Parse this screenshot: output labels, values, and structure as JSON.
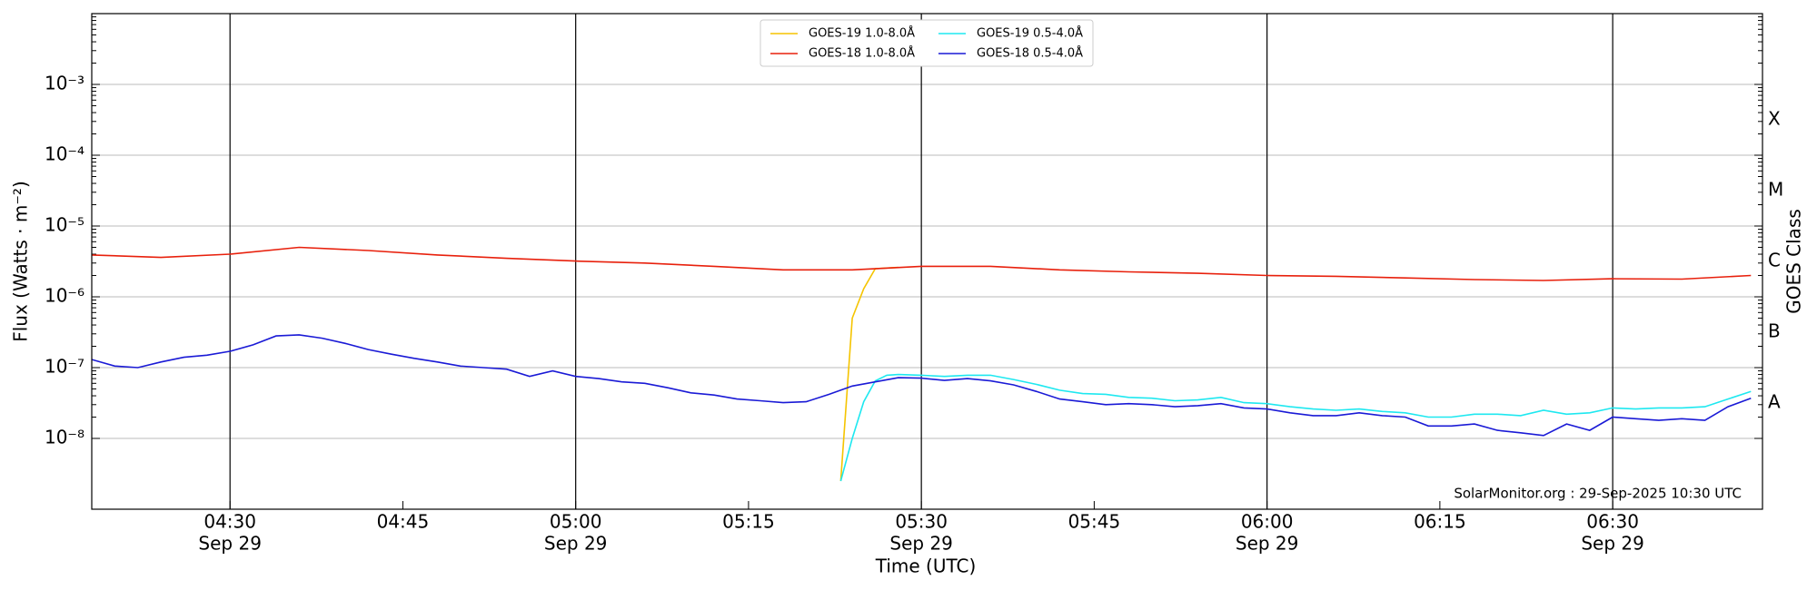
{
  "chart_data": {
    "type": "line",
    "x_label": "Time (UTC)",
    "y_label": "Flux (Watts · m⁻²)",
    "y2_label": "GOES Class",
    "annotation": "SolarMonitor.org : 29-Sep-2025 10:30 UTC",
    "log_scale": true,
    "grid": true,
    "legend": "top-center",
    "xlim": [
      "04:18",
      "06:43"
    ],
    "xticks": [
      {
        "value": "04:30",
        "label": "04:30",
        "sublabel": "Sep 29"
      },
      {
        "value": "04:45",
        "label": "04:45"
      },
      {
        "value": "05:00",
        "label": "05:00",
        "sublabel": "Sep 29"
      },
      {
        "value": "05:15",
        "label": "05:15"
      },
      {
        "value": "05:30",
        "label": "05:30",
        "sublabel": "Sep 29"
      },
      {
        "value": "05:45",
        "label": "05:45"
      },
      {
        "value": "06:00",
        "label": "06:00",
        "sublabel": "Sep 29"
      },
      {
        "value": "06:15",
        "label": "06:15"
      },
      {
        "value": "06:30",
        "label": "06:30",
        "sublabel": "Sep 29"
      }
    ],
    "ylim": [
      1e-09,
      0.01
    ],
    "yticks": [
      {
        "value": 1e-08,
        "label": "10⁻⁸"
      },
      {
        "value": 1e-07,
        "label": "10⁻⁷"
      },
      {
        "value": 1e-06,
        "label": "10⁻⁶"
      },
      {
        "value": 1e-05,
        "label": "10⁻⁵"
      },
      {
        "value": 0.0001,
        "label": "10⁻⁴"
      },
      {
        "value": 0.001,
        "label": "10⁻³"
      }
    ],
    "y2lim": [
      1e-09,
      0.01
    ],
    "y2ticks": [
      {
        "value": 3.16e-08,
        "label": "A"
      },
      {
        "value": 3.16e-07,
        "label": "B"
      },
      {
        "value": 3.16e-06,
        "label": "C"
      },
      {
        "value": 3.16e-05,
        "label": "M"
      },
      {
        "value": 0.000316,
        "label": "X"
      }
    ],
    "series": [
      {
        "name": "GOES-19 1.0-8.0Å",
        "color": "#f5c400",
        "x": [
          "05:23",
          "05:24",
          "05:25",
          "05:26",
          "05:28"
        ],
        "values": [
          2.5e-09,
          5e-07,
          1.3e-06,
          2.5e-06,
          2.6e-06
        ]
      },
      {
        "name": "GOES-18 1.0-8.0Å",
        "color": "#e8200c",
        "x": [
          "04:18",
          "04:24",
          "04:30",
          "04:36",
          "04:42",
          "04:48",
          "04:54",
          "05:00",
          "05:06",
          "05:12",
          "05:18",
          "05:24",
          "05:30",
          "05:36",
          "05:42",
          "05:48",
          "05:54",
          "06:00",
          "06:06",
          "06:12",
          "06:18",
          "06:24",
          "06:30",
          "06:36",
          "06:42"
        ],
        "values": [
          3.9e-06,
          3.6e-06,
          4e-06,
          5e-06,
          4.5e-06,
          3.9e-06,
          3.5e-06,
          3.2e-06,
          3e-06,
          2.7e-06,
          2.4e-06,
          2.4e-06,
          2.7e-06,
          2.7e-06,
          2.4e-06,
          2.25e-06,
          2.15e-06,
          2e-06,
          1.95e-06,
          1.85e-06,
          1.75e-06,
          1.7e-06,
          1.8e-06,
          1.78e-06,
          2e-06
        ]
      },
      {
        "name": "GOES-19 0.5-4.0Å",
        "color": "#1ee8f0",
        "x": [
          "05:23",
          "05:24",
          "05:25",
          "05:26",
          "05:27",
          "05:28",
          "05:30",
          "05:32",
          "05:34",
          "05:36",
          "05:38",
          "05:40",
          "05:42",
          "05:44",
          "05:46",
          "05:48",
          "05:50",
          "05:52",
          "05:54",
          "05:56",
          "05:58",
          "06:00",
          "06:02",
          "06:04",
          "06:06",
          "06:08",
          "06:10",
          "06:12",
          "06:14",
          "06:16",
          "06:18",
          "06:20",
          "06:22",
          "06:24",
          "06:26",
          "06:28",
          "06:30",
          "06:32",
          "06:34",
          "06:36",
          "06:38",
          "06:40",
          "06:42"
        ],
        "values": [
          2.5e-09,
          1e-08,
          3.3e-08,
          6.5e-08,
          7.8e-08,
          8e-08,
          7.8e-08,
          7.5e-08,
          7.8e-08,
          7.8e-08,
          6.8e-08,
          5.8e-08,
          4.8e-08,
          4.3e-08,
          4.2e-08,
          3.8e-08,
          3.7e-08,
          3.4e-08,
          3.5e-08,
          3.8e-08,
          3.2e-08,
          3.1e-08,
          2.8e-08,
          2.6e-08,
          2.5e-08,
          2.6e-08,
          2.4e-08,
          2.3e-08,
          2e-08,
          2e-08,
          2.2e-08,
          2.2e-08,
          2.1e-08,
          2.5e-08,
          2.2e-08,
          2.3e-08,
          2.7e-08,
          2.6e-08,
          2.7e-08,
          2.7e-08,
          2.8e-08,
          3.6e-08,
          4.6e-08
        ]
      },
      {
        "name": "GOES-18 0.5-4.0Å",
        "color": "#1a1ad6",
        "x": [
          "04:18",
          "04:20",
          "04:22",
          "04:24",
          "04:26",
          "04:28",
          "04:30",
          "04:32",
          "04:34",
          "04:36",
          "04:38",
          "04:40",
          "04:42",
          "04:44",
          "04:46",
          "04:48",
          "04:50",
          "04:52",
          "04:54",
          "04:56",
          "04:58",
          "05:00",
          "05:02",
          "05:04",
          "05:06",
          "05:08",
          "05:10",
          "05:12",
          "05:14",
          "05:16",
          "05:18",
          "05:20",
          "05:22",
          "05:24",
          "05:26",
          "05:28",
          "05:30",
          "05:32",
          "05:34",
          "05:36",
          "05:38",
          "05:40",
          "05:42",
          "05:44",
          "05:46",
          "05:48",
          "05:50",
          "05:52",
          "05:54",
          "05:56",
          "05:58",
          "06:00",
          "06:02",
          "06:04",
          "06:06",
          "06:08",
          "06:10",
          "06:12",
          "06:14",
          "06:16",
          "06:18",
          "06:20",
          "06:22",
          "06:24",
          "06:26",
          "06:28",
          "06:30",
          "06:32",
          "06:34",
          "06:36",
          "06:38",
          "06:40",
          "06:42"
        ],
        "values": [
          1.3e-07,
          1.05e-07,
          1e-07,
          1.2e-07,
          1.4e-07,
          1.5e-07,
          1.7e-07,
          2.1e-07,
          2.8e-07,
          2.9e-07,
          2.6e-07,
          2.2e-07,
          1.8e-07,
          1.55e-07,
          1.35e-07,
          1.2e-07,
          1.05e-07,
          1e-07,
          9.5e-08,
          7.5e-08,
          9e-08,
          7.5e-08,
          7e-08,
          6.3e-08,
          6e-08,
          5.2e-08,
          4.4e-08,
          4.1e-08,
          3.6e-08,
          3.4e-08,
          3.2e-08,
          3.3e-08,
          4.2e-08,
          5.5e-08,
          6.3e-08,
          7.2e-08,
          7.1e-08,
          6.6e-08,
          7e-08,
          6.5e-08,
          5.7e-08,
          4.6e-08,
          3.6e-08,
          3.3e-08,
          3e-08,
          3.1e-08,
          3e-08,
          2.8e-08,
          2.9e-08,
          3.1e-08,
          2.7e-08,
          2.6e-08,
          2.3e-08,
          2.1e-08,
          2.1e-08,
          2.3e-08,
          2.1e-08,
          2e-08,
          1.5e-08,
          1.5e-08,
          1.6e-08,
          1.3e-08,
          1.2e-08,
          1.1e-08,
          1.6e-08,
          1.3e-08,
          2e-08,
          1.9e-08,
          1.8e-08,
          1.9e-08,
          1.8e-08,
          2.8e-08,
          3.7e-08
        ]
      }
    ]
  }
}
